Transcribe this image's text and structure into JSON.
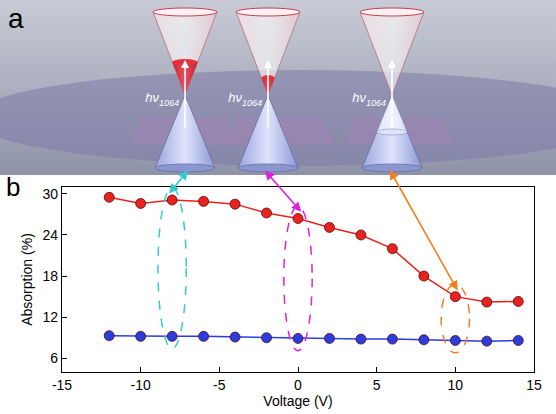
{
  "chart_data": {
    "type": "line",
    "panel_label": "b",
    "x_label": "Voltage (V)",
    "y_label": "Absorption (%)",
    "x": [
      -12,
      -10,
      -8,
      -6,
      -4,
      -2,
      0,
      2,
      4,
      6,
      8,
      10,
      12,
      14
    ],
    "series": [
      {
        "color": "#e8221e",
        "marker": "circle",
        "values": [
          29.5,
          28.6,
          29.1,
          28.9,
          28.5,
          27.2,
          26.4,
          25.1,
          24.0,
          22.0,
          18.0,
          15.0,
          14.2,
          14.3
        ]
      },
      {
        "color": "#2a3ee0",
        "marker": "circle",
        "values": [
          9.3,
          9.2,
          9.2,
          9.2,
          9.1,
          9.0,
          8.9,
          8.9,
          8.8,
          8.8,
          8.7,
          8.6,
          8.5,
          8.6
        ]
      }
    ],
    "xlim": [
      -15,
      15
    ],
    "xticks": [
      -15,
      -10,
      -5,
      0,
      5,
      10,
      15
    ],
    "ylim": [
      4,
      31
    ],
    "yticks": [
      6,
      12,
      18,
      24,
      30
    ],
    "grid": false,
    "highlights": [
      {
        "x": -8,
        "color": "#33cccc"
      },
      {
        "x": 0,
        "color": "#e020e0"
      },
      {
        "x": 10,
        "color": "#f08020"
      }
    ]
  },
  "illustration": {
    "panel_label": "a",
    "photon_labels": [
      {
        "text": "hν",
        "subscript": "1064"
      },
      {
        "text": "hν",
        "subscript": "1064"
      },
      {
        "text": "hν",
        "subscript": "1064"
      }
    ]
  }
}
